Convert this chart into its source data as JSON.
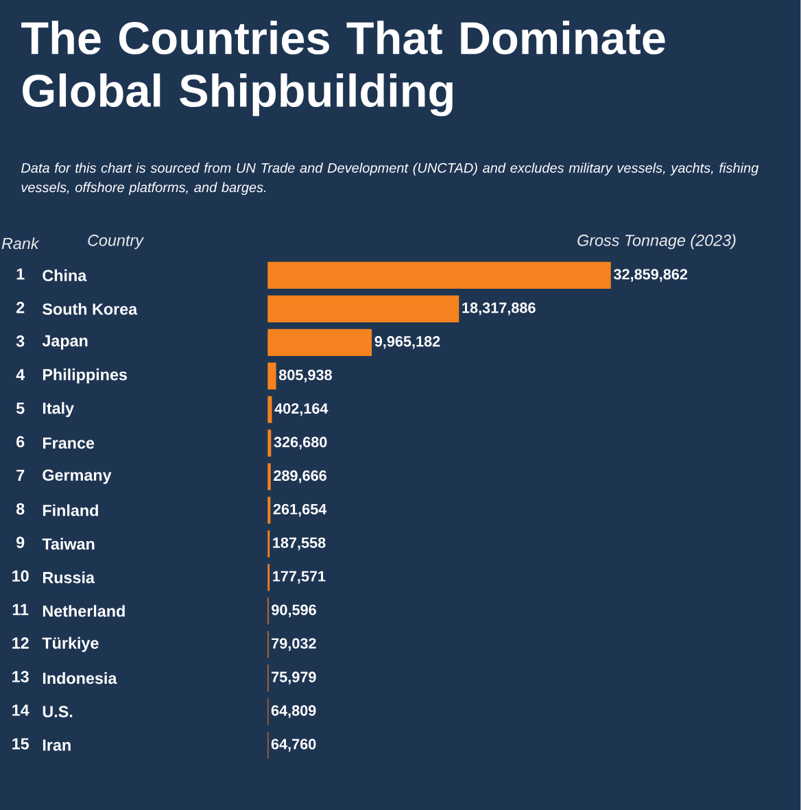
{
  "chart_data": {
    "type": "bar",
    "orientation": "horizontal",
    "title": "The Countries That Dominate Global Shipbuilding",
    "subtitle": "Data for this chart is sourced from UN Trade and Development (UNCTAD) and excludes military vessels, yachts, fishing vessels, offshore platforms, and barges.",
    "ylabel": "Country",
    "categories": [
      "China",
      "South Korea",
      "Japan",
      "Philippines",
      "Italy",
      "France",
      "Germany",
      "Finland",
      "Taiwan",
      "Russia",
      "Netherland",
      "Türkiye",
      "Indonesia",
      "U.S.",
      "Iran"
    ],
    "values": [
      32859862,
      18317886,
      9965182,
      805938,
      402164,
      326680,
      289666,
      261654,
      187558,
      177571,
      90596,
      79032,
      75979,
      64809,
      64760
    ],
    "value_labels": [
      "32,859,862",
      "18,317,886",
      "9,965,182",
      "805,938",
      "402,164",
      "326,680",
      "289,666",
      "261,654",
      "187,558",
      "177,571",
      "90,596",
      "79,032",
      "75,979",
      "64,809",
      "64,760"
    ],
    "color": "#f5821f",
    "tick_labels": "y",
    "annotations": [
      "Rank",
      "Gross Tonnage (2023)",
      "1",
      "2",
      "3",
      "4",
      "5",
      "6",
      "7",
      "8",
      "9",
      "10",
      "11",
      "12",
      "13",
      "14",
      "15"
    ]
  }
}
